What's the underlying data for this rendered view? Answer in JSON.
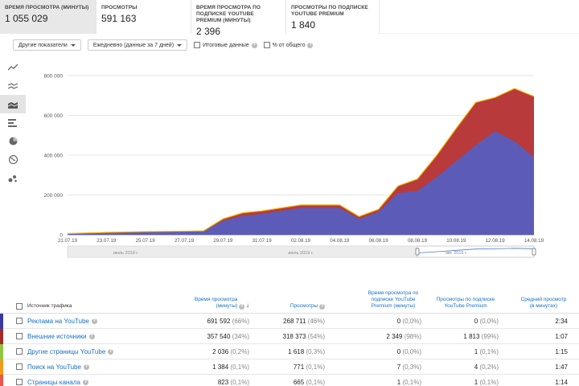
{
  "metrics": [
    {
      "label": "Время просмотра (минуты)",
      "value": "1 055 029"
    },
    {
      "label": "Просмотры",
      "value": "591 163"
    },
    {
      "label": "Время просмотра по подписке YouTube Premium (минуты)",
      "value": "2 396"
    },
    {
      "label": "Просмотры по подписке YouTube Premium",
      "value": "1 840"
    }
  ],
  "toolbar": {
    "other_metrics": "Другие показатели",
    "period": "Ежедневно (данные за 7 дней)",
    "totals": "Итоговые данные",
    "percent": "% от общего"
  },
  "side_icons": [
    "line-chart-icon",
    "multi-line-chart-icon",
    "stacked-area-chart-icon",
    "bar-chart-icon",
    "pie-chart-icon",
    "map-icon",
    "bubble-chart-icon"
  ],
  "chart_data": {
    "type": "area",
    "y_ticks": [
      "800 000",
      "600 000",
      "400 000",
      "200 000",
      "0"
    ],
    "ylim": [
      0,
      800000
    ],
    "x": [
      "21.07.19",
      "22.07.19",
      "23.07.19",
      "24.07.19",
      "25.07.19",
      "26.07.19",
      "27.07.19",
      "28.07.19",
      "29.07.19",
      "30.07.19",
      "31.07.19",
      "01.08.19",
      "02.08.19",
      "03.08.19",
      "04.08.19",
      "05.08.19",
      "06.08.19",
      "07.08.19",
      "08.08.19",
      "09.08.19",
      "10.08.19",
      "11.08.19",
      "12.08.19",
      "13.08.19",
      "14.08.19"
    ],
    "x_tick_labels": [
      "21.07.19",
      "23.07.19",
      "25.07.19",
      "27.07.19",
      "29.07.19",
      "31.07.19",
      "02.08.19",
      "04.08.19",
      "06.08.19",
      "08.08.19",
      "10.08.19",
      "12.08.19",
      "14.08.19"
    ],
    "series": [
      {
        "color": "#5c5cb8",
        "values": [
          5000,
          8000,
          10000,
          12000,
          14000,
          15000,
          16000,
          18000,
          70000,
          95000,
          105000,
          120000,
          135000,
          135000,
          135000,
          80000,
          115000,
          210000,
          220000,
          290000,
          370000,
          450000,
          520000,
          470000,
          390000
        ]
      },
      {
        "color": "#b83a3a",
        "values": [
          1000,
          1000,
          2000,
          2000,
          2000,
          2000,
          2000,
          2000,
          10000,
          15000,
          15000,
          15000,
          15000,
          15000,
          15000,
          12000,
          13000,
          35000,
          60000,
          110000,
          165000,
          215000,
          170000,
          265000,
          305000
        ]
      }
    ],
    "top_line_color": "#f2b200",
    "navigator": {
      "labels": [
        "июль 2019 г.",
        "июль 2019 г.",
        "авг. 2019 г."
      ]
    }
  },
  "table": {
    "headers": {
      "source": "Источник трафика",
      "watch_time": "Время просмотра (минуты)",
      "views": "Просмотры",
      "premium_watch_time": "Время просмотра по подписке YouTube Premium (минуты)",
      "premium_views": "Просмотры по подписке YouTube Premium",
      "avg_view": "Средний просмотр (в минутах)"
    },
    "rows": [
      {
        "color": "#3a3aa0",
        "name": "Реклама на YouTube",
        "watch": "691 592",
        "watch_pct": "(66%)",
        "views": "268 711",
        "views_pct": "(46%)",
        "pw": "0",
        "pw_pct": "(0,0%)",
        "pv": "0",
        "pv_pct": "(0,0%)",
        "avg": "2:34"
      },
      {
        "color": "#a32b2b",
        "name": "Внешние источники",
        "watch": "357 540",
        "watch_pct": "(34%)",
        "views": "318 373",
        "views_pct": "(54%)",
        "pw": "2 349",
        "pw_pct": "(98%)",
        "pv": "1 813",
        "pv_pct": "(99%)",
        "avg": "1:07"
      },
      {
        "color": "#8ec63f",
        "name": "Другие страницы YouTube",
        "watch": "2 036",
        "watch_pct": "(0,2%)",
        "views": "1 618",
        "views_pct": "(0,3%)",
        "pw": "0",
        "pw_pct": "(0,0%)",
        "pv": "1",
        "pv_pct": "(0,1%)",
        "avg": "1:15"
      },
      {
        "color": "#f29a1d",
        "name": "Поиск на YouTube",
        "watch": "1 384",
        "watch_pct": "(0,1%)",
        "views": "771",
        "views_pct": "(0,1%)",
        "pw": "7",
        "pw_pct": "(0,3%)",
        "pv": "4",
        "pv_pct": "(0,2%)",
        "avg": "1:47"
      },
      {
        "color": "#e8574a",
        "name": "Страницы канала",
        "watch": "823",
        "watch_pct": "(0,1%)",
        "views": "665",
        "views_pct": "(0,1%)",
        "pw": "1",
        "pw_pct": "(0,1%)",
        "pv": "1",
        "pv_pct": "(0,1%)",
        "avg": "1:14"
      }
    ]
  }
}
